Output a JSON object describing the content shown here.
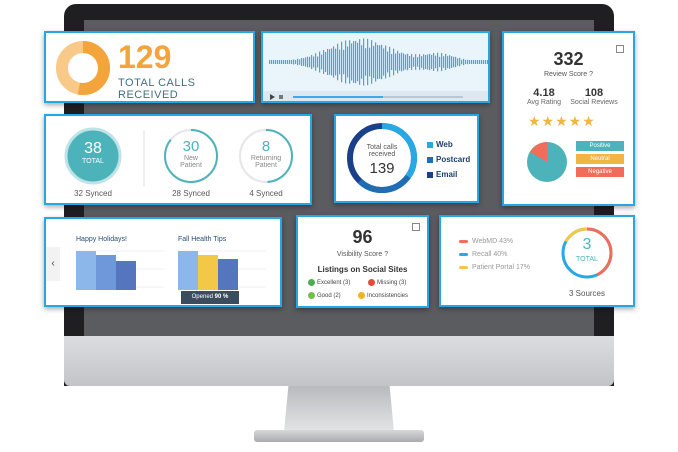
{
  "calls_card": {
    "count": "129",
    "label": "TOTAL CALLS RECEIVED"
  },
  "audio_card": {
    "play_icon": "play-icon",
    "volume_icon": "volume-icon"
  },
  "review_card": {
    "score": "332",
    "score_label": "Review Score",
    "avg_rating": "4.18",
    "avg_rating_label": "Avg Rating",
    "social_reviews": "108",
    "social_reviews_label": "Social Reviews",
    "stars": "★★★★★",
    "legend": [
      "Positive",
      "Neutral",
      "Negative"
    ],
    "colors": {
      "positive": "#4db3ba",
      "neutral": "#f1b541",
      "negative": "#f26c5a"
    }
  },
  "synced_card": {
    "total_value": "38",
    "total_label": "TOTAL",
    "total_synced": "32 Synced",
    "new_value": "30",
    "new_label_1": "New",
    "new_label_2": "Patient",
    "new_synced": "28 Synced",
    "ret_value": "8",
    "ret_label_1": "Returning",
    "ret_label_2": "Patient",
    "ret_synced": "4 Synced"
  },
  "total_calls_card": {
    "center_label_1": "Total calls",
    "center_label_2": "received",
    "value": "139",
    "legend": [
      "Web",
      "Postcard",
      "Email"
    ],
    "colors": {
      "web": "#29a8e6",
      "postcard": "#1f6db3",
      "email": "#1c3f8a"
    }
  },
  "email_card": {
    "campaign_1": "Happy Holidays!",
    "campaign_2": "Fall Health Tips",
    "tooltip_label": "Opened",
    "tooltip_value": "90 %",
    "prev_arrow": "‹"
  },
  "visibility_card": {
    "score": "96",
    "score_label": "Visibility Score",
    "listings_title": "Listings on Social Sites",
    "items": [
      "Excellent (3)",
      "Missing (3)",
      "Good (2)",
      "Inconsistencies"
    ]
  },
  "sources_card": {
    "rows": [
      "WebMD 43%",
      "Recall 40%",
      "Patient Portal 17%"
    ],
    "total_value": "3",
    "total_label": "TOTAL",
    "footer": "3 Sources",
    "colors": {
      "webmd": "#f26c5a",
      "recall": "#29a8e6",
      "portal": "#f3c847"
    }
  }
}
